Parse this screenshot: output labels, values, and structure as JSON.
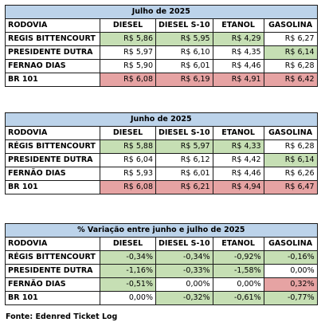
{
  "source": "Fonte: Edenred Ticket Log",
  "tables": [
    {
      "title": "Julho de 2025",
      "headers": [
        "RODOVIA",
        "DIESEL",
        "DIESEL S-10",
        "ETANOL",
        "GASOLINA"
      ],
      "rows": [
        {
          "name": "REGIS BITTENCOURT",
          "values": [
            "R$ 5,86",
            "R$ 5,95",
            "R$ 4,29",
            "R$ 6,27"
          ],
          "colors": [
            "g",
            "g",
            "g",
            "w"
          ]
        },
        {
          "name": "PRESIDENTE DUTRA",
          "values": [
            "R$ 5,97",
            "R$ 6,10",
            "R$ 4,35",
            "R$ 6,14"
          ],
          "colors": [
            "w",
            "w",
            "w",
            "g"
          ]
        },
        {
          "name": "FERNAO DIAS",
          "values": [
            "R$ 5,90",
            "R$ 6,01",
            "R$ 4,46",
            "R$ 6,28"
          ],
          "colors": [
            "w",
            "w",
            "w",
            "w"
          ]
        },
        {
          "name": "BR 101",
          "values": [
            "R$ 6,08",
            "R$ 6,19",
            "R$ 4,91",
            "R$ 6,42"
          ],
          "colors": [
            "r",
            "r",
            "r",
            "r"
          ]
        }
      ]
    },
    {
      "title": "Junho de 2025",
      "headers": [
        "RODOVIA",
        "DIESEL",
        "DIESEL S-10",
        "ETANOL",
        "GASOLINA"
      ],
      "rows": [
        {
          "name": "RÉGIS BITTENCOURT",
          "values": [
            "R$ 5,88",
            "R$ 5,97",
            "R$ 4,33",
            "R$ 6,28"
          ],
          "colors": [
            "g",
            "g",
            "g",
            "w"
          ]
        },
        {
          "name": "PRESIDENTE DUTRA",
          "values": [
            "R$ 6,04",
            "R$ 6,12",
            "R$ 4,42",
            "R$ 6,14"
          ],
          "colors": [
            "w",
            "w",
            "w",
            "g"
          ]
        },
        {
          "name": "FERNÃO DIAS",
          "values": [
            "R$ 5,93",
            "R$ 6,01",
            "R$ 4,46",
            "R$ 6,26"
          ],
          "colors": [
            "w",
            "w",
            "w",
            "w"
          ]
        },
        {
          "name": "BR 101",
          "values": [
            "R$ 6,08",
            "R$ 6,21",
            "R$ 4,94",
            "R$ 6,47"
          ],
          "colors": [
            "r",
            "r",
            "r",
            "r"
          ]
        }
      ]
    },
    {
      "title": "% Variação entre junho e julho de 2025",
      "headers": [
        "RODOVIA",
        "DIESEL",
        "DIESEL S-10",
        "ETANOL",
        "GASOLINA"
      ],
      "rows": [
        {
          "name": "RÉGIS BITTENCOURT",
          "values": [
            "-0,34%",
            "-0,34%",
            "-0,92%",
            "-0,16%"
          ],
          "colors": [
            "g",
            "g",
            "g",
            "g"
          ]
        },
        {
          "name": "PRESIDENTE DUTRA",
          "values": [
            "-1,16%",
            "-0,33%",
            "-1,58%",
            "0,00%"
          ],
          "colors": [
            "g",
            "g",
            "g",
            "w"
          ]
        },
        {
          "name": "FERNÃO DIAS",
          "values": [
            "-0,51%",
            "0,00%",
            "0,00%",
            "0,32%"
          ],
          "colors": [
            "g",
            "w",
            "w",
            "r"
          ]
        },
        {
          "name": "BR 101",
          "values": [
            "0,00%",
            "-0,32%",
            "-0,61%",
            "-0,77%"
          ],
          "colors": [
            "w",
            "g",
            "g",
            "g"
          ]
        }
      ]
    }
  ]
}
